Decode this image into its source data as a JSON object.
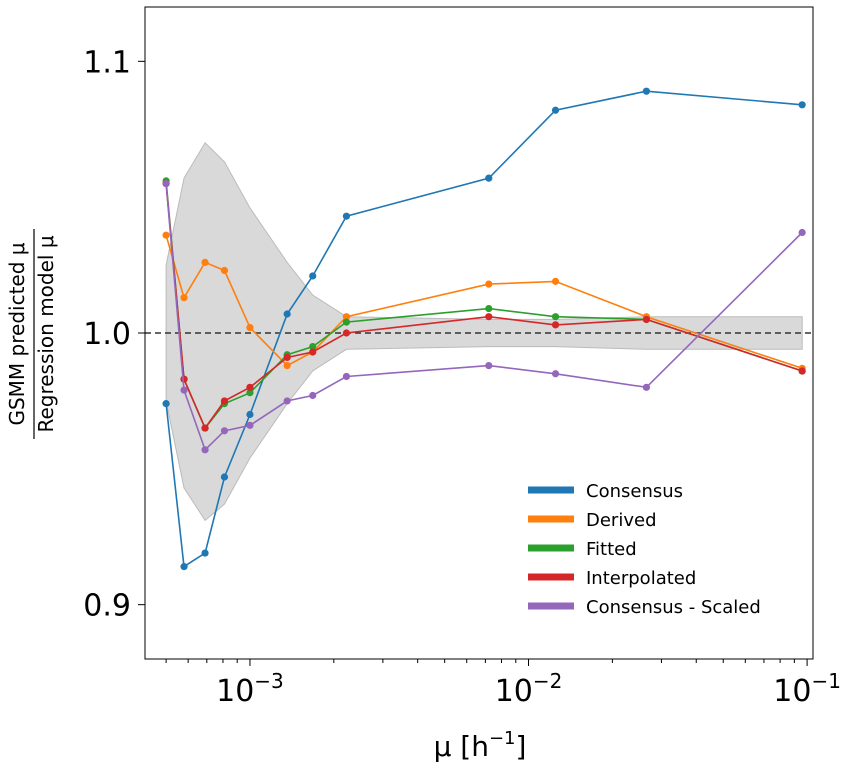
{
  "chart_data": {
    "type": "line",
    "xlabel_base": "μ [h",
    "xlabel_exp": "−1",
    "xlabel_end": "]",
    "ylabel_top": "GSMM predicted μ",
    "ylabel_bottom": "Regression model μ",
    "xscale": "log",
    "xlim": [
      0.00042,
      0.105
    ],
    "ylim": [
      0.88,
      1.12
    ],
    "xticks": [
      {
        "value": 0.001,
        "base": "10",
        "exp": "−3"
      },
      {
        "value": 0.01,
        "base": "10",
        "exp": "−2"
      },
      {
        "value": 0.1,
        "base": "10",
        "exp": "−1"
      }
    ],
    "yticks": [
      {
        "value": 0.9,
        "label": "0.9"
      },
      {
        "value": 1.0,
        "label": "1.0"
      },
      {
        "value": 1.1,
        "label": "1.1"
      }
    ],
    "reference_line": 1.0,
    "grid": false,
    "legend_position": "lower-right",
    "x": [
      0.0005,
      0.00058,
      0.00069,
      0.00081,
      0.001,
      0.00136,
      0.00168,
      0.00222,
      0.0072,
      0.0125,
      0.0265,
      0.096
    ],
    "band": {
      "upper": [
        1.025,
        1.057,
        1.07,
        1.063,
        1.046,
        1.026,
        1.014,
        1.006,
        1.005,
        1.005,
        1.006,
        1.006
      ],
      "lower": [
        0.975,
        0.943,
        0.931,
        0.937,
        0.954,
        0.974,
        0.986,
        0.994,
        0.995,
        0.995,
        0.994,
        0.994
      ],
      "color": "#d9d9d9"
    },
    "series": [
      {
        "name": "Consensus",
        "color": "#1f77b4",
        "values": [
          0.974,
          0.914,
          0.919,
          0.947,
          0.97,
          1.007,
          1.021,
          1.043,
          1.057,
          1.082,
          1.089,
          1.084
        ]
      },
      {
        "name": "Derived",
        "color": "#ff7f0e",
        "values": [
          1.036,
          1.013,
          1.026,
          1.023,
          1.002,
          0.988,
          0.993,
          1.006,
          1.018,
          1.019,
          1.006,
          0.987
        ]
      },
      {
        "name": "Fitted",
        "color": "#2ca02c",
        "values": [
          1.056,
          0.983,
          0.965,
          0.974,
          0.978,
          0.992,
          0.995,
          1.004,
          1.009,
          1.006,
          1.005,
          0.986
        ]
      },
      {
        "name": "Interpolated",
        "color": "#d62728",
        "values": [
          1.055,
          0.983,
          0.965,
          0.975,
          0.98,
          0.991,
          0.993,
          1.0,
          1.006,
          1.003,
          1.005,
          0.986
        ]
      },
      {
        "name": "Consensus - Scaled",
        "color": "#9467bd",
        "values": [
          1.055,
          0.979,
          0.957,
          0.964,
          0.966,
          0.975,
          0.977,
          0.984,
          0.988,
          0.985,
          0.98,
          1.037
        ]
      }
    ]
  }
}
